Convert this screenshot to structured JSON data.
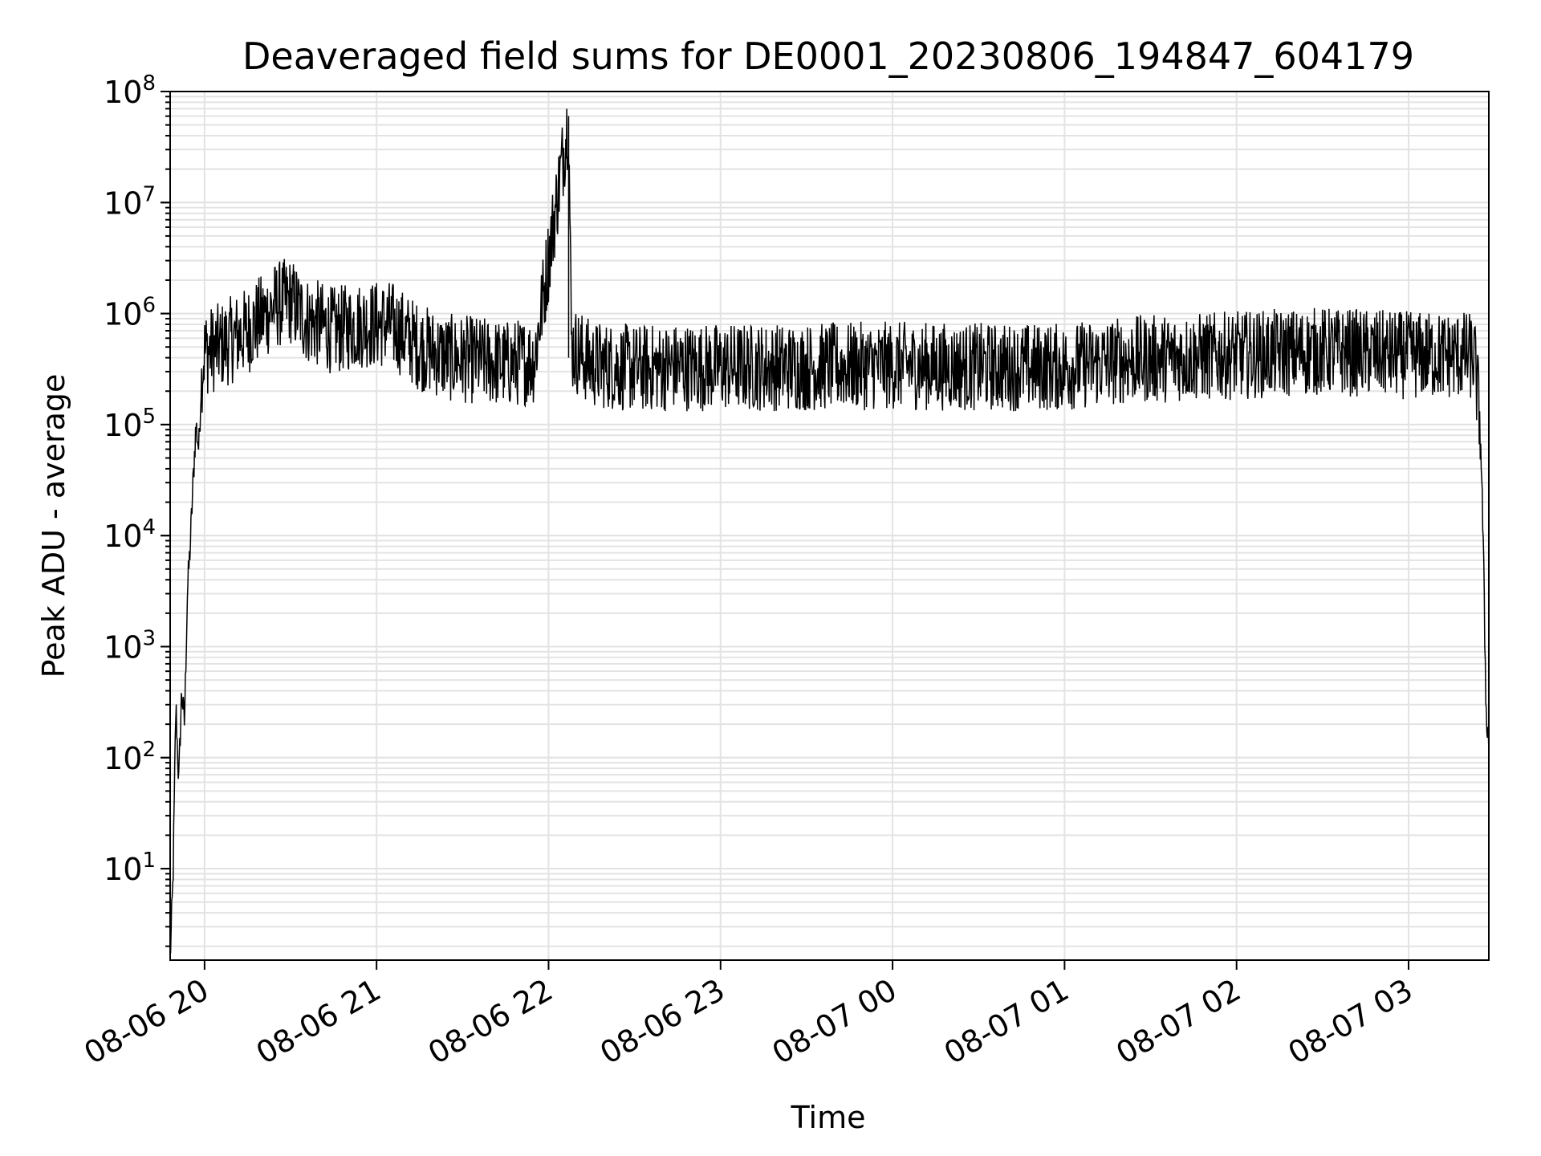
{
  "chart_data": {
    "type": "line",
    "title": "Deaveraged field sums for DE0001_20230806_194847_604179",
    "xlabel": "Time",
    "ylabel": "Peak ADU - average",
    "yscale": "log",
    "ylim": [
      1.5,
      100000000
    ],
    "xlim": [
      "2023-08-06 19:48",
      "2023-08-07 03:28"
    ],
    "grid": true,
    "color": "#000000",
    "x_ticks": [
      "08-06 20",
      "08-06 21",
      "08-06 22",
      "08-06 23",
      "08-07 00",
      "08-07 01",
      "08-07 02",
      "08-07 03"
    ],
    "y_ticks": [
      {
        "base": "10",
        "exp": "1",
        "value": 10
      },
      {
        "base": "10",
        "exp": "2",
        "value": 100
      },
      {
        "base": "10",
        "exp": "3",
        "value": 1000
      },
      {
        "base": "10",
        "exp": "4",
        "value": 10000
      },
      {
        "base": "10",
        "exp": "5",
        "value": 100000
      },
      {
        "base": "10",
        "exp": "6",
        "value": 1000000
      },
      {
        "base": "10",
        "exp": "7",
        "value": 10000000
      },
      {
        "base": "10",
        "exp": "8",
        "value": 100000000
      }
    ],
    "series": [
      {
        "x": [
          "2023-08-06 19:48",
          "2023-08-06 19:49",
          "2023-08-06 19:50",
          "2023-08-06 19:51",
          "2023-08-06 19:52",
          "2023-08-06 19:53",
          "2023-08-06 19:54",
          "2023-08-06 19:55",
          "2023-08-06 19:56",
          "2023-08-06 19:57",
          "2023-08-06 19:58",
          "2023-08-06 19:59",
          "2023-08-06 20:00",
          "2023-08-06 20:05",
          "2023-08-06 20:15",
          "2023-08-06 20:25",
          "2023-08-06 20:30",
          "2023-08-06 20:35",
          "2023-08-06 20:45",
          "2023-08-06 20:55",
          "2023-08-06 21:05",
          "2023-08-06 21:15",
          "2023-08-06 21:25",
          "2023-08-06 21:35",
          "2023-08-06 21:45",
          "2023-08-06 21:55",
          "2023-08-06 22:07",
          "2023-08-06 22:08",
          "2023-08-06 22:15",
          "2023-08-06 22:30",
          "2023-08-06 22:45",
          "2023-08-06 23:00",
          "2023-08-06 23:30",
          "2023-08-07 00:00",
          "2023-08-07 00:30",
          "2023-08-07 01:00",
          "2023-08-07 01:20",
          "2023-08-07 01:40",
          "2023-08-07 02:00",
          "2023-08-07 02:30",
          "2023-08-07 03:00",
          "2023-08-07 03:20",
          "2023-08-07 03:23",
          "2023-08-07 03:25",
          "2023-08-07 03:26",
          "2023-08-07 03:27",
          "2023-08-07 03:28"
        ],
        "y": [
          1.5,
          8,
          300,
          60,
          400,
          200,
          3000,
          8000,
          30000,
          100000,
          60000,
          300000,
          450000,
          500000,
          700000,
          1200000,
          1300000,
          900000,
          700000,
          800000,
          800000,
          500000,
          400000,
          380000,
          350000,
          380000,
          60000000,
          500000,
          350000,
          320000,
          330000,
          330000,
          330000,
          340000,
          330000,
          330000,
          380000,
          400000,
          420000,
          460000,
          420000,
          420000,
          400000,
          100000,
          10000,
          300,
          120
        ]
      }
    ]
  }
}
